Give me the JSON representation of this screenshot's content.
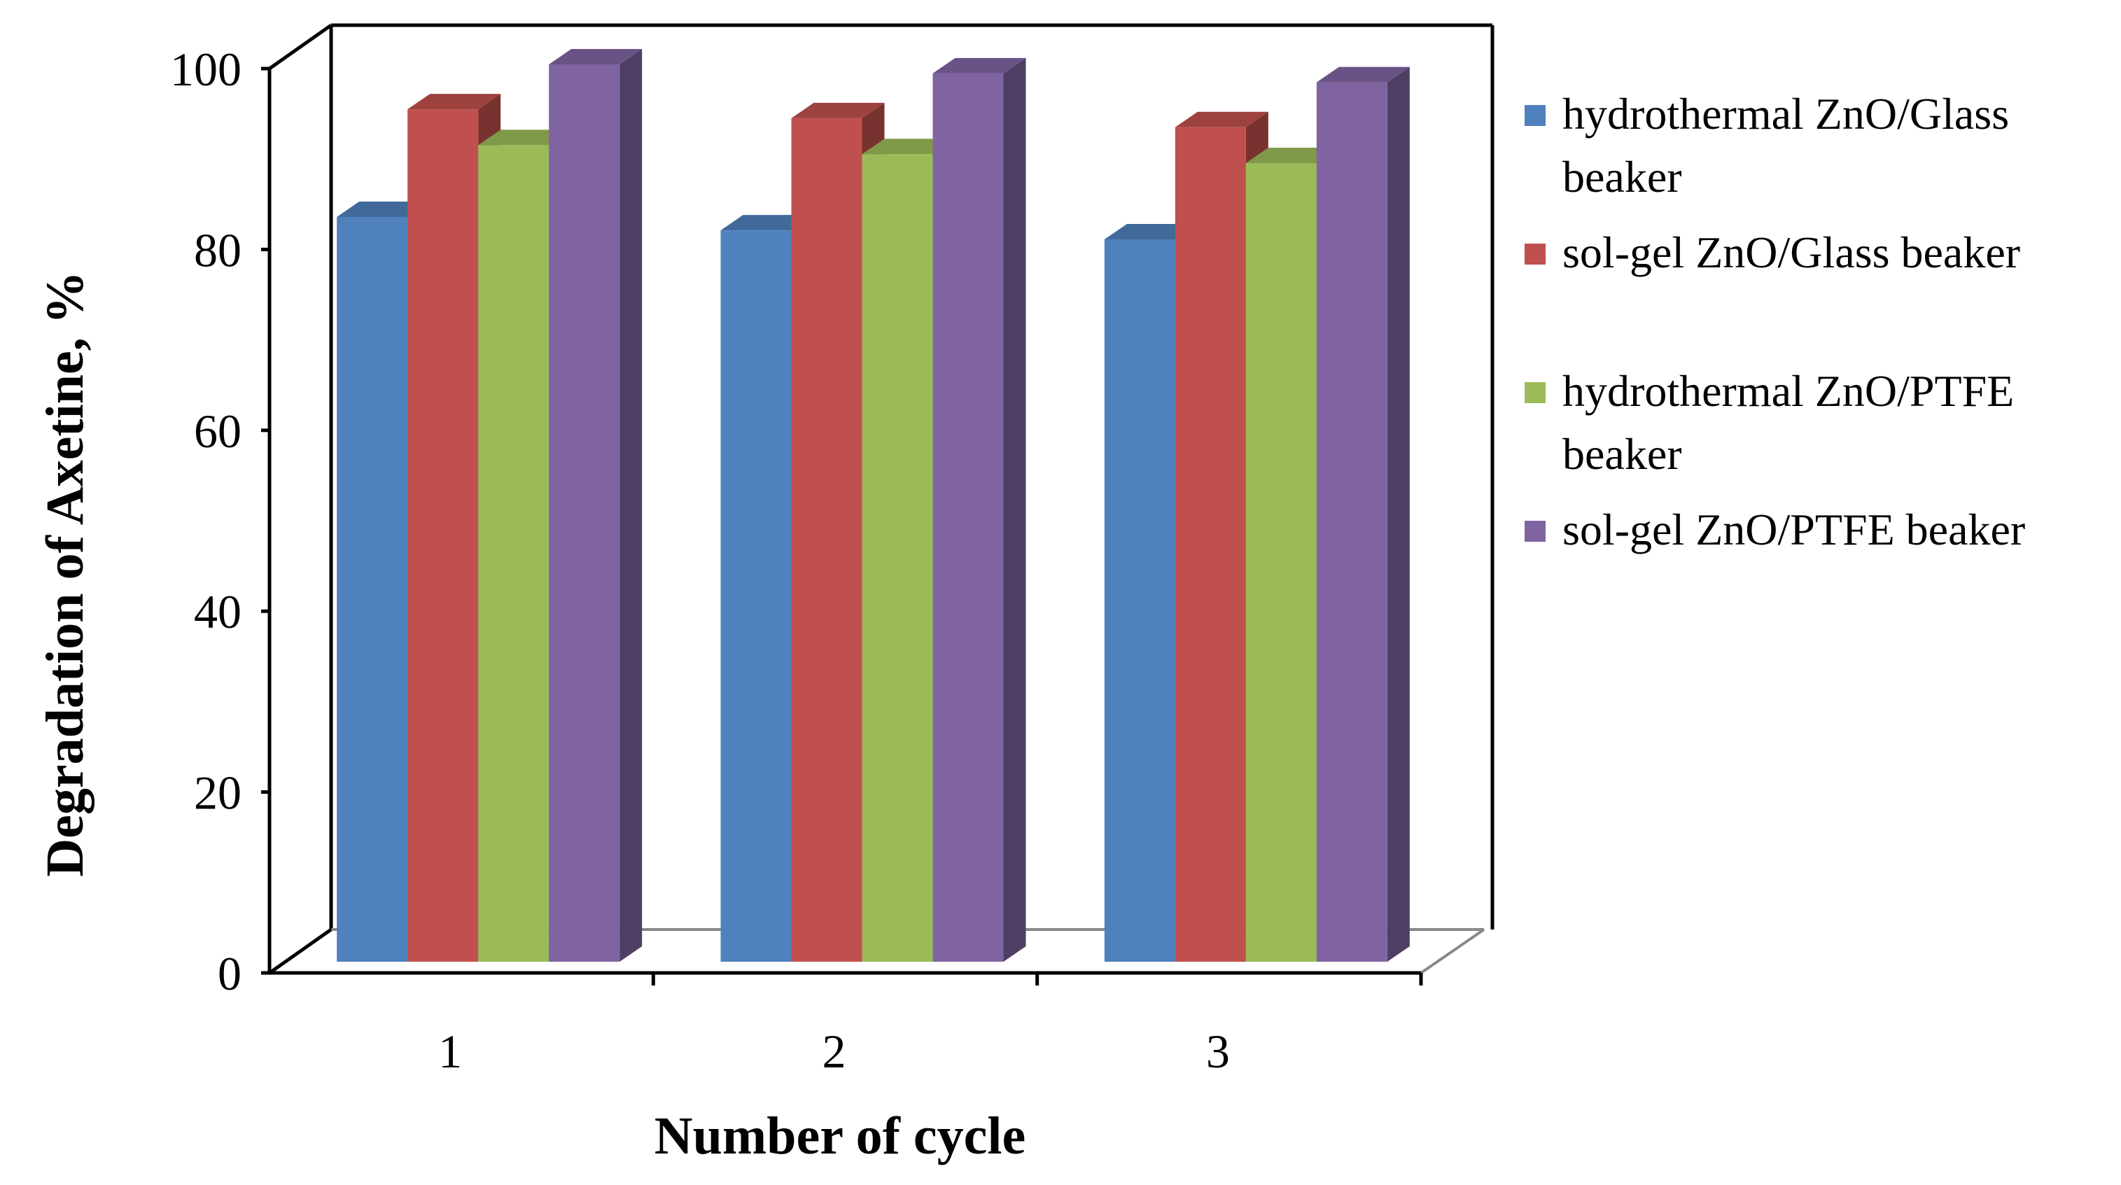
{
  "chart_data": {
    "type": "bar",
    "style": "3d-clustered-column",
    "title": "",
    "xlabel": "Number of cycle",
    "ylabel": "Degradation of Axetine, %",
    "categories": [
      "1",
      "2",
      "3"
    ],
    "ylim": [
      0,
      100
    ],
    "yticks": [
      "0",
      "20",
      "40",
      "60",
      "80",
      "100"
    ],
    "ytick_values": [
      0,
      20,
      40,
      60,
      80,
      100
    ],
    "grid": false,
    "legend_position": "right",
    "series": [
      {
        "name": "hydrothermal ZnO/Glass beaker",
        "legend_lines": [
          "hydrothermal ZnO/Glass",
          "beaker"
        ],
        "color": "#4f81bd",
        "values": [
          83,
          81.5,
          80.5
        ]
      },
      {
        "name": "sol-gel ZnO/Glass beaker",
        "legend_lines": [
          "sol-gel ZnO/Glass beaker"
        ],
        "color": "#c0504d",
        "values": [
          95,
          94,
          93
        ]
      },
      {
        "name": "hydrothermal ZnO/PTFE beaker",
        "legend_lines": [
          "hydrothermal ZnO/PTFE",
          "beaker"
        ],
        "color": "#9bbb59",
        "values": [
          91,
          90,
          89
        ]
      },
      {
        "name": "sol-gel ZnO/PTFE beaker",
        "legend_lines": [
          "sol-gel ZnO/PTFE beaker"
        ],
        "color": "#8064a2",
        "values": [
          100,
          99,
          98
        ]
      }
    ]
  }
}
